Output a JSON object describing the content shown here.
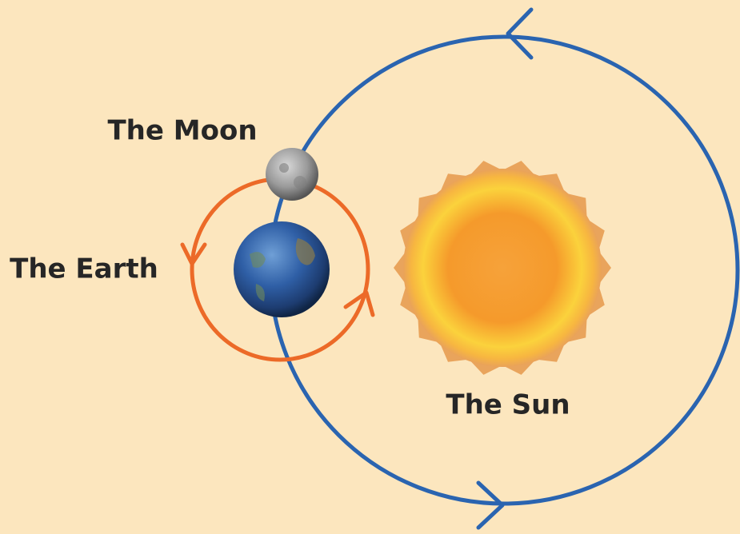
{
  "nodes": [
    {
      "label": "The Moon"
    },
    {
      "label": "The Earth"
    },
    {
      "label": "The Sun"
    }
  ]
}
